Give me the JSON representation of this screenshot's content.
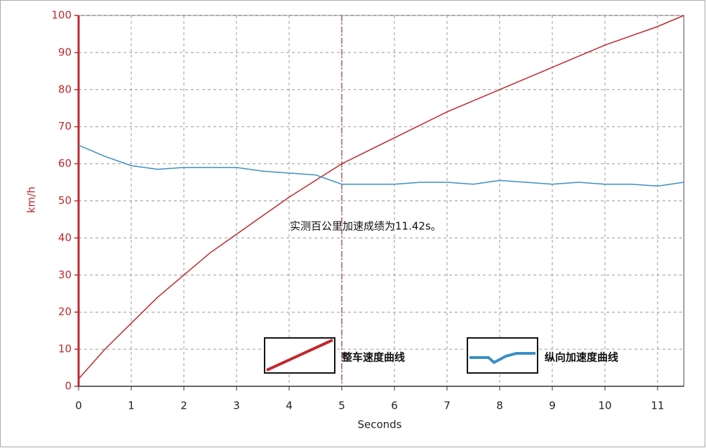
{
  "chart_data": {
    "type": "line",
    "x": [
      0,
      0.5,
      1,
      1.5,
      2,
      2.5,
      3,
      3.5,
      4,
      4.5,
      5,
      5.5,
      6,
      6.5,
      7,
      7.5,
      8,
      8.5,
      9,
      9.5,
      10,
      10.5,
      11,
      11.5
    ],
    "series": [
      {
        "name": "整车速度曲线",
        "color": "#c0282d",
        "values": [
          2,
          10,
          17,
          24,
          30,
          36,
          41,
          46,
          51,
          55.5,
          60,
          63.5,
          67,
          70.5,
          74,
          77,
          80,
          83,
          86,
          89,
          92,
          94.5,
          97,
          100
        ]
      },
      {
        "name": "纵向加速度曲线",
        "color": "#3a8fc4",
        "values": [
          65,
          62,
          59.5,
          58.5,
          59,
          59,
          59,
          58,
          57.5,
          57,
          54.5,
          54.5,
          54.5,
          55,
          55,
          54.5,
          55.5,
          55,
          54.5,
          55,
          54.5,
          54.5,
          54,
          55
        ]
      }
    ],
    "ylabel": "km/h",
    "xlabel": "Seconds",
    "annotation": "实测百公里加速成绩为11.42s。",
    "marker_x": 5,
    "xlim": [
      0,
      11.5
    ],
    "ylim": [
      0,
      100
    ],
    "xticks": [
      0,
      1,
      2,
      3,
      4,
      5,
      6,
      7,
      8,
      9,
      10,
      11
    ],
    "yticks": [
      0,
      10,
      20,
      30,
      40,
      50,
      60,
      70,
      80,
      90,
      100
    ],
    "grid": true,
    "legend": "lower right"
  }
}
